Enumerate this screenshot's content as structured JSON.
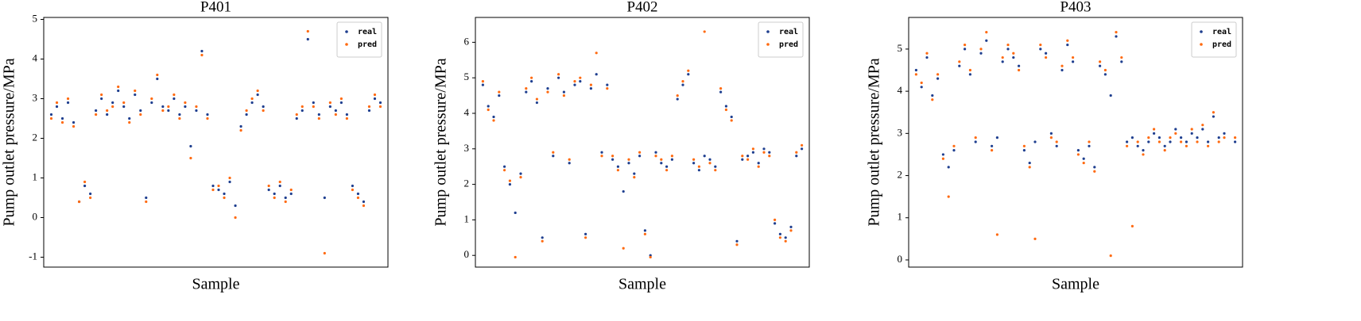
{
  "chart_data": [
    {
      "type": "scatter",
      "title": "P401",
      "xlabel": "Sample",
      "ylabel": "Pump outlet pressure/MPa",
      "ylim": [
        -1.25,
        5.05
      ],
      "yticks": [
        -1,
        0,
        1,
        2,
        3,
        4,
        5
      ],
      "legend": "upper right",
      "series": [
        {
          "name": "real",
          "color": "#1f3f8f",
          "values": [
            2.6,
            2.8,
            2.5,
            2.9,
            2.4,
            0.4,
            0.8,
            0.6,
            2.7,
            3.0,
            2.6,
            2.9,
            3.2,
            2.8,
            2.5,
            3.1,
            2.7,
            0.5,
            2.9,
            3.5,
            2.8,
            2.7,
            3.0,
            2.6,
            2.8,
            1.8,
            2.7,
            4.2,
            2.6,
            0.8,
            0.7,
            0.6,
            0.9,
            0.3,
            2.3,
            2.6,
            2.9,
            3.1,
            2.8,
            0.7,
            0.6,
            0.8,
            0.5,
            0.6,
            2.5,
            2.7,
            4.5,
            2.9,
            2.6,
            0.5,
            2.8,
            2.7,
            2.9,
            2.6,
            0.8,
            0.6,
            0.4,
            2.7,
            3.0,
            2.9
          ]
        },
        {
          "name": "pred",
          "color": "#ff6a10",
          "values": [
            2.5,
            2.9,
            2.4,
            3.0,
            2.3,
            0.4,
            0.9,
            0.5,
            2.6,
            3.1,
            2.7,
            2.8,
            3.3,
            2.9,
            2.4,
            3.2,
            2.6,
            0.4,
            3.0,
            3.6,
            2.7,
            2.8,
            3.1,
            2.5,
            2.9,
            1.5,
            2.8,
            4.1,
            2.5,
            0.7,
            0.8,
            0.5,
            1.0,
            0.0,
            2.2,
            2.7,
            3.0,
            3.2,
            2.7,
            0.8,
            0.5,
            0.9,
            0.4,
            0.7,
            2.6,
            2.8,
            4.7,
            2.8,
            2.5,
            -0.9,
            2.9,
            2.6,
            3.0,
            2.5,
            0.7,
            0.5,
            0.3,
            2.8,
            3.1,
            2.8
          ]
        }
      ]
    },
    {
      "type": "scatter",
      "title": "P402",
      "xlabel": "Sample",
      "ylabel": "Pump outlet pressure/MPa",
      "ylim": [
        -0.33,
        6.7
      ],
      "yticks": [
        0,
        1,
        2,
        3,
        4,
        5,
        6
      ],
      "legend": "upper right",
      "series": [
        {
          "name": "real",
          "color": "#1f3f8f",
          "values": [
            4.8,
            4.2,
            3.9,
            4.5,
            2.5,
            2.0,
            1.2,
            2.3,
            4.6,
            4.9,
            4.3,
            0.5,
            4.7,
            2.8,
            5.0,
            4.6,
            2.6,
            4.8,
            4.9,
            0.6,
            4.7,
            5.1,
            2.9,
            4.8,
            2.7,
            2.5,
            1.8,
            2.6,
            2.3,
            2.8,
            0.7,
            0.0,
            2.9,
            2.6,
            2.5,
            2.7,
            4.4,
            4.8,
            5.1,
            2.6,
            2.4,
            2.8,
            2.7,
            2.5,
            4.6,
            4.2,
            3.9,
            0.4,
            2.7,
            2.8,
            2.9,
            2.6,
            3.0,
            2.9,
            0.9,
            0.6,
            0.5,
            0.8,
            2.8,
            3.0
          ]
        },
        {
          "name": "pred",
          "color": "#ff6a10",
          "values": [
            4.9,
            4.1,
            3.8,
            4.6,
            2.4,
            2.1,
            -0.05,
            2.2,
            4.7,
            5.0,
            4.4,
            0.4,
            4.6,
            2.9,
            5.1,
            4.5,
            2.7,
            4.9,
            5.0,
            0.5,
            4.8,
            5.7,
            2.8,
            4.7,
            2.8,
            2.4,
            0.2,
            2.7,
            2.2,
            2.9,
            0.6,
            -0.05,
            2.8,
            2.7,
            2.4,
            2.8,
            4.5,
            4.9,
            5.2,
            2.7,
            2.5,
            6.3,
            2.6,
            2.4,
            4.7,
            4.1,
            3.8,
            0.3,
            2.8,
            2.7,
            3.0,
            2.5,
            2.9,
            2.8,
            1.0,
            0.5,
            0.4,
            0.7,
            2.9,
            3.1
          ]
        }
      ]
    },
    {
      "type": "scatter",
      "title": "P403",
      "xlabel": "Sample",
      "ylabel": "Pump outlet pressure/MPa",
      "ylim": [
        -0.17,
        5.75
      ],
      "yticks": [
        0,
        1,
        2,
        3,
        4,
        5
      ],
      "legend": "upper right",
      "series": [
        {
          "name": "real",
          "color": "#1f3f8f",
          "values": [
            4.5,
            4.1,
            4.8,
            3.9,
            4.3,
            2.5,
            2.2,
            2.6,
            4.6,
            5.0,
            4.4,
            2.8,
            4.9,
            5.2,
            2.7,
            2.9,
            4.7,
            5.0,
            4.8,
            4.6,
            2.6,
            2.3,
            2.8,
            5.0,
            4.9,
            3.0,
            2.7,
            4.5,
            5.1,
            4.7,
            2.6,
            2.4,
            2.7,
            2.2,
            4.6,
            4.4,
            3.9,
            5.3,
            4.7,
            2.8,
            2.9,
            2.7,
            2.6,
            2.8,
            3.0,
            2.9,
            2.7,
            2.8,
            3.1,
            2.9,
            2.8,
            3.0,
            2.9,
            3.1,
            2.8,
            3.4,
            2.9,
            3.0,
            4.9,
            2.8
          ]
        },
        {
          "name": "pred",
          "color": "#ff6a10",
          "values": [
            4.4,
            4.2,
            4.9,
            3.8,
            4.4,
            2.4,
            1.5,
            2.7,
            4.7,
            5.1,
            4.5,
            2.9,
            5.0,
            5.4,
            2.6,
            0.6,
            4.8,
            5.1,
            4.9,
            4.5,
            2.7,
            2.2,
            0.5,
            5.1,
            4.8,
            2.9,
            2.8,
            4.6,
            5.2,
            4.8,
            2.5,
            2.3,
            2.8,
            2.1,
            4.7,
            4.5,
            0.1,
            5.4,
            4.8,
            2.7,
            0.8,
            2.8,
            2.5,
            2.9,
            3.1,
            2.8,
            2.6,
            2.9,
            3.0,
            2.8,
            2.7,
            3.1,
            2.8,
            3.2,
            2.7,
            3.5,
            2.8,
            2.9,
            5.0,
            2.9
          ]
        }
      ]
    }
  ]
}
